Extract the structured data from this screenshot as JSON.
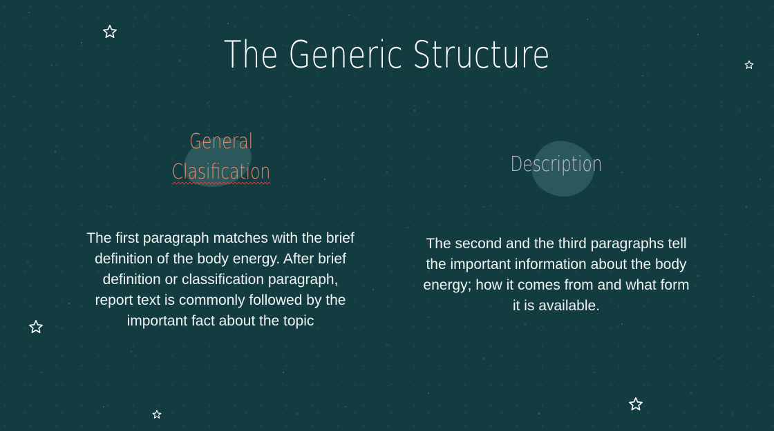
{
  "slide": {
    "title": "The Generic Structure",
    "left_column": {
      "heading_line1": "General",
      "heading_line2": "Clasification",
      "paragraph": "The first paragraph matches with the brief definition of the body energy. After brief definition or classification paragraph, report text is commonly followed by the important fact about the topic"
    },
    "right_column": {
      "heading": "Description",
      "paragraph": "The second and the third paragraphs tell the important information about the body energy; how it comes from and what form it is available."
    }
  },
  "colors": {
    "background": "#123c40",
    "title": "#ffffff",
    "left_heading": "#e58a6f",
    "right_heading": "#c7b4e8",
    "blob": "#2f5c5e",
    "body_text": "#f2f2f2",
    "spellcheck_underline": "#dd4444"
  },
  "icons": [
    "star-icon"
  ]
}
